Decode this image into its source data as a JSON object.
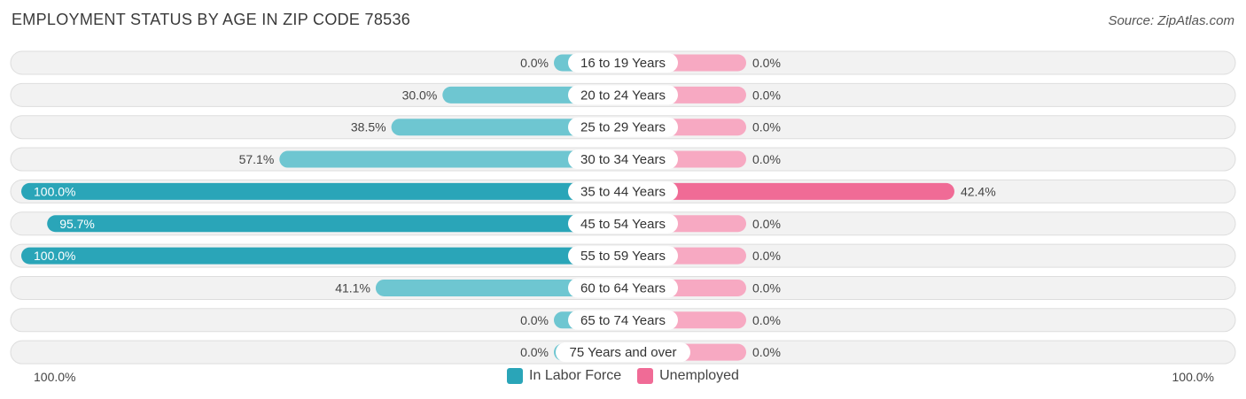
{
  "header": {
    "title": "EMPLOYMENT STATUS BY AGE IN ZIP CODE 78536",
    "source": "Source: ZipAtlas.com"
  },
  "colors": {
    "labor_force": "#2aa5b8",
    "labor_force_light": "#6ec6d1",
    "unemployed": "#f06b96",
    "unemployed_light": "#f7a9c2",
    "row_bg": "#eeeeee"
  },
  "axis": {
    "left_label": "100.0%",
    "right_label": "100.0%"
  },
  "legend": {
    "items": [
      {
        "label": "In Labor Force",
        "color": "#2aa5b8"
      },
      {
        "label": "Unemployed",
        "color": "#f06b96"
      }
    ]
  },
  "chart_data": {
    "type": "bar",
    "orientation": "diverging-horizontal",
    "categories": [
      "16 to 19 Years",
      "20 to 24 Years",
      "25 to 29 Years",
      "30 to 34 Years",
      "35 to 44 Years",
      "45 to 54 Years",
      "55 to 59 Years",
      "60 to 64 Years",
      "65 to 74 Years",
      "75 Years and over"
    ],
    "series": [
      {
        "name": "In Labor Force",
        "values": [
          0.0,
          30.0,
          38.5,
          57.1,
          100.0,
          95.7,
          100.0,
          41.1,
          0.0,
          0.0
        ],
        "labels": [
          "0.0%",
          "30.0%",
          "38.5%",
          "57.1%",
          "100.0%",
          "95.7%",
          "100.0%",
          "41.1%",
          "0.0%",
          "0.0%"
        ]
      },
      {
        "name": "Unemployed",
        "values": [
          0.0,
          0.0,
          0.0,
          0.0,
          42.4,
          0.0,
          0.0,
          0.0,
          0.0,
          0.0
        ],
        "labels": [
          "0.0%",
          "0.0%",
          "0.0%",
          "0.0%",
          "42.4%",
          "0.0%",
          "0.0%",
          "0.0%",
          "0.0%",
          "0.0%"
        ]
      }
    ],
    "xlim": [
      -100,
      100
    ],
    "title": "EMPLOYMENT STATUS BY AGE IN ZIP CODE 78536",
    "legend_position": "bottom-center"
  }
}
